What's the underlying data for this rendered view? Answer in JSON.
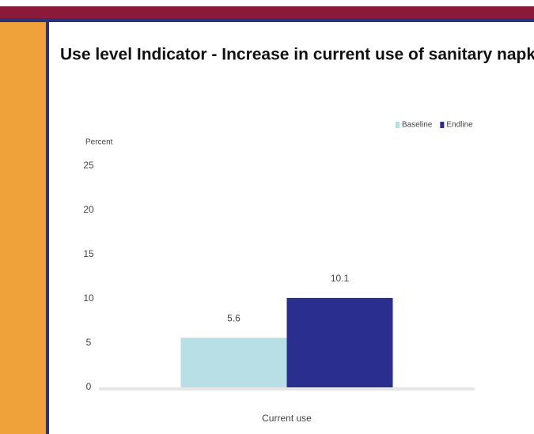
{
  "chart_data": {
    "type": "bar",
    "title": "Use level Indicator - Increase in current use of sanitary napkins",
    "y_label": "Percent",
    "categories": [
      "Current use"
    ],
    "series": [
      {
        "name": "Baseline",
        "color": "#b7dfe5",
        "values": [
          5.6
        ]
      },
      {
        "name": "Endline",
        "color": "#2a2e8e",
        "values": [
          10.1
        ]
      }
    ],
    "ylim": [
      0,
      25
    ],
    "yticks": [
      0,
      5,
      10,
      15,
      20,
      25
    ],
    "legend": "top-right"
  }
}
